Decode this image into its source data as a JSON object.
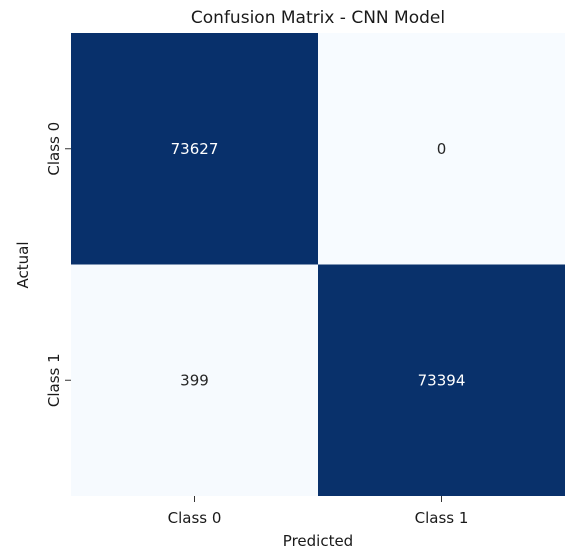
{
  "chart_data": {
    "type": "heatmap",
    "title": "Confusion Matrix - CNN Model",
    "xlabel": "Predicted",
    "ylabel": "Actual",
    "x_categories": [
      "Class 0",
      "Class 1"
    ],
    "y_categories": [
      "Class 0",
      "Class 1"
    ],
    "values": [
      [
        73627,
        0
      ],
      [
        399,
        73394
      ]
    ],
    "colormap": "Blues",
    "color_low": "#f7fbff",
    "color_high": "#08306b",
    "text_on_dark": "#ffffff",
    "text_on_light": "#262626",
    "colorbar": false,
    "grid": false
  }
}
